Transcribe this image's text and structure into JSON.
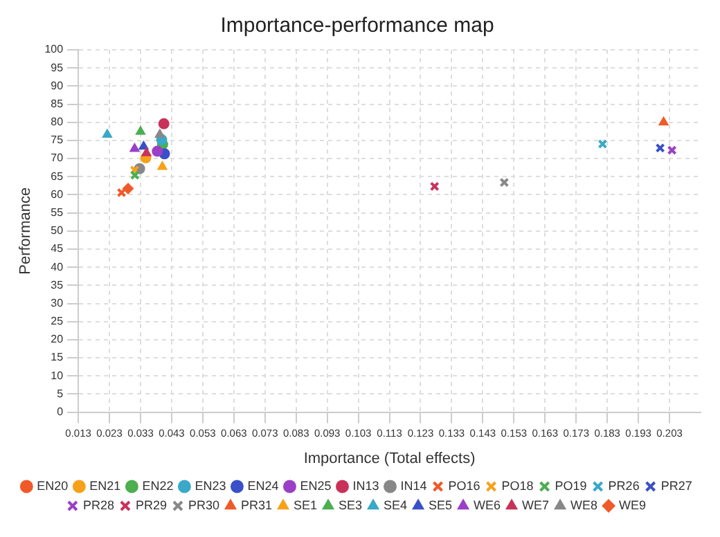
{
  "chart_data": {
    "type": "scatter",
    "title": "Importance-performance map",
    "xlabel": "Importance (Total effects)",
    "ylabel": "Performance",
    "xlim": [
      0.013,
      0.213
    ],
    "xticks": [
      0.013,
      0.023,
      0.033,
      0.043,
      0.053,
      0.063,
      0.073,
      0.083,
      0.093,
      0.103,
      0.113,
      0.123,
      0.133,
      0.143,
      0.153,
      0.163,
      0.173,
      0.183,
      0.193,
      0.203
    ],
    "ylim": [
      0,
      100
    ],
    "yticks": [
      0,
      5,
      10,
      15,
      20,
      25,
      30,
      35,
      40,
      45,
      50,
      55,
      60,
      65,
      70,
      75,
      80,
      85,
      90,
      95,
      100
    ],
    "grid": true,
    "legend": "bottom",
    "series": [
      {
        "name": "EN20",
        "color": "#f05a28",
        "marker": "circle",
        "x": [
          null
        ],
        "values": [
          null
        ]
      },
      {
        "name": "EN21",
        "color": "#f7a11a",
        "marker": "circle",
        "x": [
          0.0347
        ],
        "values": [
          70.2
        ]
      },
      {
        "name": "EN22",
        "color": "#4caf50",
        "marker": "circle",
        "x": [
          0.0401
        ],
        "values": [
          73.9
        ]
      },
      {
        "name": "EN23",
        "color": "#3aa8c9",
        "marker": "circle",
        "x": [
          0.0398
        ],
        "values": [
          75.2
        ]
      },
      {
        "name": "EN24",
        "color": "#3a50c8",
        "marker": "circle",
        "x": [
          0.0407
        ],
        "values": [
          71.3
        ]
      },
      {
        "name": "EN25",
        "color": "#9b3fc8",
        "marker": "circle",
        "x": [
          0.0384
        ],
        "values": [
          72.0
        ]
      },
      {
        "name": "IN13",
        "color": "#c8325a",
        "marker": "circle",
        "x": [
          0.0405
        ],
        "values": [
          79.6
        ]
      },
      {
        "name": "IN14",
        "color": "#888888",
        "marker": "circle",
        "x": [
          0.0327
        ],
        "values": [
          67.2
        ]
      },
      {
        "name": "PO16",
        "color": "#f05a28",
        "marker": "cross",
        "x": [
          0.0269
        ],
        "values": [
          60.6
        ]
      },
      {
        "name": "PO18",
        "color": "#f7a11a",
        "marker": "cross",
        "x": [
          0.0311
        ],
        "values": [
          66.8
        ]
      },
      {
        "name": "PO19",
        "color": "#4caf50",
        "marker": "cross",
        "x": [
          0.0312
        ],
        "values": [
          65.4
        ]
      },
      {
        "name": "PR26",
        "color": "#3aa8c9",
        "marker": "cross",
        "x": [
          0.1815
        ],
        "values": [
          74.0
        ]
      },
      {
        "name": "PR27",
        "color": "#3a50c8",
        "marker": "cross",
        "x": [
          0.2
        ],
        "values": [
          72.9
        ]
      },
      {
        "name": "PR28",
        "color": "#9b3fc8",
        "marker": "cross",
        "x": [
          0.2038
        ],
        "values": [
          72.3
        ]
      },
      {
        "name": "PR29",
        "color": "#c8325a",
        "marker": "cross",
        "x": [
          0.1275
        ],
        "values": [
          62.3
        ]
      },
      {
        "name": "PR30",
        "color": "#888888",
        "marker": "cross",
        "x": [
          0.1499
        ],
        "values": [
          63.4
        ]
      },
      {
        "name": "PR31",
        "color": "#f05a28",
        "marker": "triangle",
        "x": [
          0.2011
        ],
        "values": [
          80.0
        ]
      },
      {
        "name": "SE1",
        "color": "#f7a11a",
        "marker": "triangle",
        "x": [
          0.04
        ],
        "values": [
          67.7
        ]
      },
      {
        "name": "SE3",
        "color": "#4caf50",
        "marker": "triangle",
        "x": [
          0.033
        ],
        "values": [
          77.4
        ]
      },
      {
        "name": "SE4",
        "color": "#3aa8c9",
        "marker": "triangle",
        "x": [
          0.0223
        ],
        "values": [
          76.6
        ]
      },
      {
        "name": "SE5",
        "color": "#3a50c8",
        "marker": "triangle",
        "x": [
          0.034
        ],
        "values": [
          73.3
        ]
      },
      {
        "name": "WE6",
        "color": "#9b3fc8",
        "marker": "triangle",
        "x": [
          0.0311
        ],
        "values": [
          72.7
        ]
      },
      {
        "name": "WE7",
        "color": "#c8325a",
        "marker": "triangle",
        "x": [
          0.0349
        ],
        "values": [
          71.5
        ]
      },
      {
        "name": "WE8",
        "color": "#888888",
        "marker": "triangle",
        "x": [
          0.0392
        ],
        "values": [
          76.6
        ]
      },
      {
        "name": "WE9",
        "color": "#f05a28",
        "marker": "diamond",
        "x": [
          0.029
        ],
        "values": [
          61.7
        ]
      }
    ]
  }
}
